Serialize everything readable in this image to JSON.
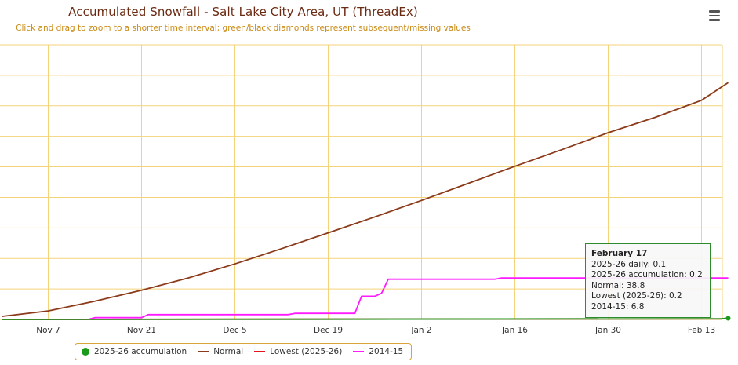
{
  "title": "Accumulated Snowfall - Salt Lake City Area, UT (ThreadEx)",
  "subtitle": "Click and drag to zoom to a shorter time interval; green/black diamonds represent subsequent/missing values",
  "menu_icon": "hamburger-menu-icon",
  "tooltip": {
    "date": "February 17",
    "lines": [
      "2025-26 daily: 0.1",
      "2025-26 accumulation: 0.2",
      "Normal: 38.8",
      "Lowest (2025-26): 0.2",
      "2014-15: 6.8"
    ]
  },
  "legend": [
    {
      "label": "2025-26 accumulation",
      "color": "#1a9a1a",
      "symbol": "dot"
    },
    {
      "label": "Normal",
      "color": "#8b3a1a",
      "symbol": "line"
    },
    {
      "label": "Lowest (2025-26)",
      "color": "#e3141b",
      "symbol": "line"
    },
    {
      "label": "2014-15",
      "color": "#ff1aff",
      "symbol": "line"
    }
  ],
  "colors": {
    "grid": "#f5d37a",
    "axis_label": "#333333",
    "tooltip_border": "#2e8b2e"
  },
  "chart_data": {
    "type": "line",
    "title": "Accumulated Snowfall - Salt Lake City Area, UT (ThreadEx)",
    "x_ticks": [
      "Nov 7",
      "Nov 21",
      "Dec 5",
      "Dec 19",
      "Jan 2",
      "Jan 16",
      "Jan 30",
      "Feb 13"
    ],
    "x_range": [
      "Oct 31",
      "Feb 17"
    ],
    "ylim": [
      0,
      45
    ],
    "grid": true,
    "legend_position": "bottom",
    "series": [
      {
        "name": "Normal",
        "color": "#8b3a1a",
        "x": [
          "Oct 31",
          "Nov 7",
          "Nov 14",
          "Nov 21",
          "Nov 28",
          "Dec 5",
          "Dec 12",
          "Dec 19",
          "Dec 26",
          "Jan 2",
          "Jan 9",
          "Jan 16",
          "Jan 23",
          "Jan 30",
          "Feb 6",
          "Feb 13",
          "Feb 17"
        ],
        "values": [
          0.5,
          1.4,
          3.0,
          4.8,
          6.8,
          9.1,
          11.6,
          14.2,
          16.8,
          19.5,
          22.3,
          25.1,
          27.8,
          30.6,
          33.1,
          35.9,
          38.8
        ]
      },
      {
        "name": "2014-15",
        "color": "#ff1aff",
        "x": [
          "Oct 31",
          "Nov 13",
          "Nov 14",
          "Nov 21",
          "Nov 22",
          "Dec 13",
          "Dec 14",
          "Dec 23",
          "Dec 24",
          "Dec 26",
          "Dec 27",
          "Dec 28",
          "Jan 13",
          "Jan 14",
          "Feb 17"
        ],
        "values": [
          0.0,
          0.0,
          0.3,
          0.3,
          0.8,
          0.8,
          1.0,
          1.0,
          3.8,
          3.8,
          4.3,
          6.6,
          6.6,
          6.8,
          6.8
        ]
      },
      {
        "name": "Lowest (2025-26)",
        "color": "#e3141b",
        "x": [
          "Oct 31",
          "Feb 16",
          "Feb 17"
        ],
        "values": [
          0.0,
          0.1,
          0.2
        ]
      },
      {
        "name": "2025-26 accumulation",
        "color": "#1a9a1a",
        "x": [
          "Oct 31",
          "Feb 16",
          "Feb 17"
        ],
        "values": [
          0.0,
          0.1,
          0.2
        ]
      }
    ]
  }
}
